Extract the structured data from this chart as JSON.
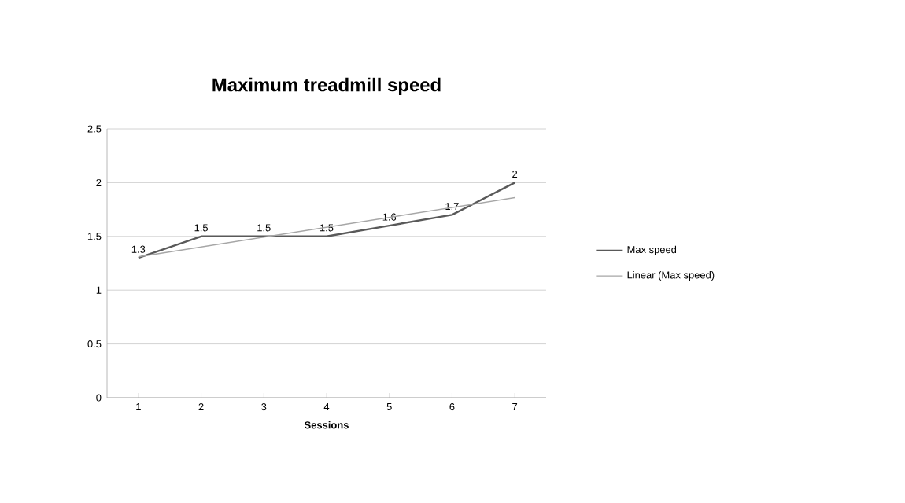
{
  "chart_data": {
    "type": "line",
    "title": "Maximum treadmill speed",
    "xlabel": "Sessions",
    "x": [
      1,
      2,
      3,
      4,
      5,
      6,
      7
    ],
    "series": [
      {
        "name": "Max speed",
        "color": "#595959",
        "values": [
          1.3,
          1.5,
          1.5,
          1.5,
          1.6,
          1.7,
          2
        ],
        "value_labels": [
          "1.3",
          "1.5",
          "1.5",
          "1.5",
          "1.6",
          "1.7",
          "2"
        ]
      },
      {
        "name": "Linear (Max speed)",
        "type": "line",
        "color": "#a6a6a6",
        "x": [
          1,
          7
        ],
        "values": [
          1.31,
          1.86
        ]
      }
    ],
    "xlim": [
      0.5,
      7.5
    ],
    "xticks": [
      1,
      2,
      3,
      4,
      5,
      6,
      7
    ],
    "ylim": [
      0,
      2.5
    ],
    "yticks": [
      0,
      0.5,
      1,
      1.5,
      2,
      2.5
    ],
    "grid": "y",
    "legend": "right"
  }
}
